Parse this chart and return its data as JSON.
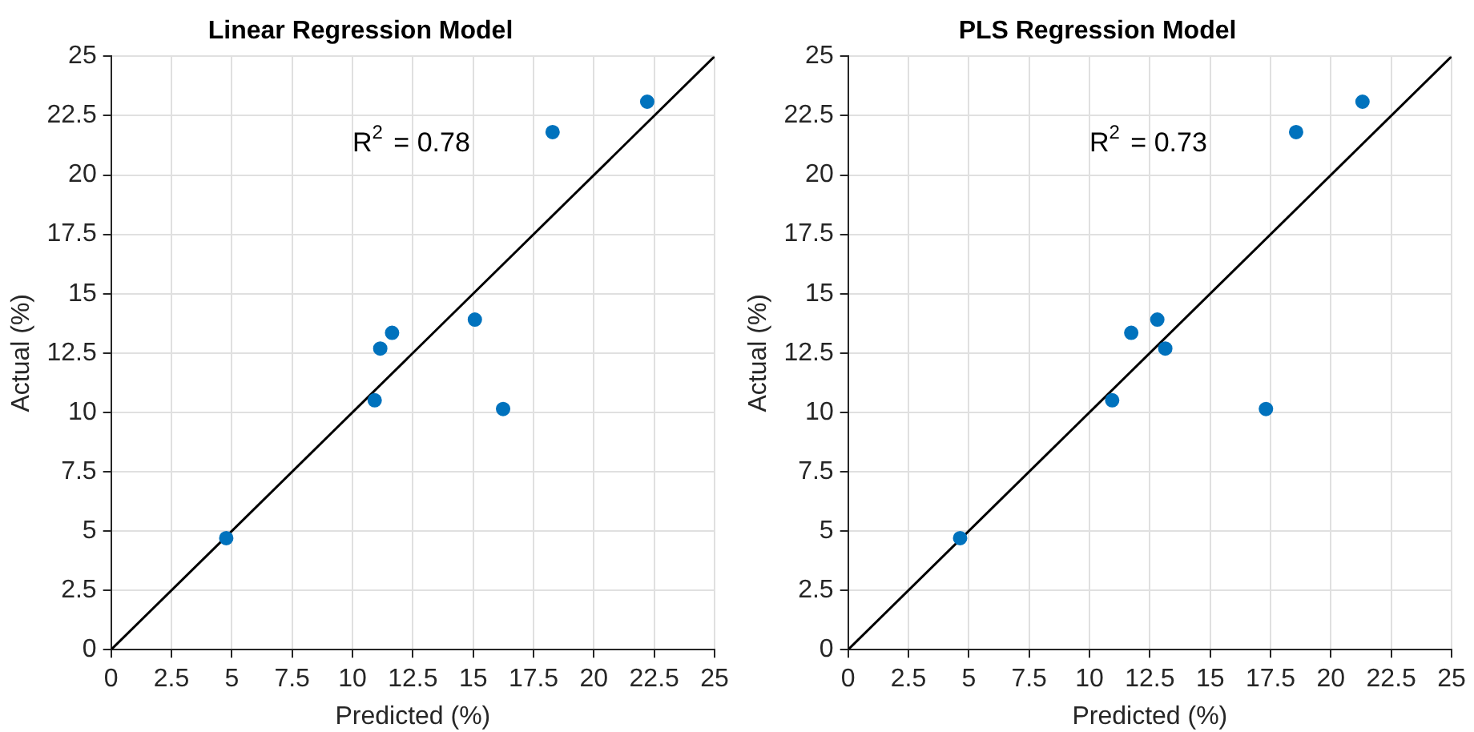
{
  "chart_data": [
    {
      "type": "scatter",
      "title": "Linear Regression Model",
      "xlabel": "Predicted (%)",
      "ylabel": "Actual (%)",
      "annotations": [
        "R$^{2}$ = 0.78"
      ],
      "grid": true,
      "legend": false,
      "xlim": [
        0,
        25
      ],
      "ylim": [
        0,
        25
      ],
      "xticks": [
        0,
        2.5,
        5,
        7.5,
        10,
        12.5,
        15,
        17.5,
        20,
        22.5,
        25
      ],
      "yticks": [
        0,
        2.5,
        5,
        7.5,
        10,
        12.5,
        15,
        17.5,
        20,
        22.5,
        25
      ],
      "series": [
        {
          "color": "#0072bd",
          "marker": "circle",
          "x": [
            4.77,
            10.92,
            11.15,
            11.64,
            15.07,
            16.24,
            18.29,
            22.21
          ],
          "values": [
            4.7,
            10.51,
            12.69,
            13.35,
            13.91,
            10.14,
            21.81,
            23.09
          ]
        },
        {
          "type": "line",
          "color": "#000000",
          "marker": "none",
          "x": [
            0,
            25
          ],
          "values": [
            0,
            25
          ]
        }
      ]
    },
    {
      "type": "scatter",
      "title": "PLS Regression Model",
      "xlabel": "Predicted (%)",
      "ylabel": "Actual (%)",
      "annotations": [
        "R$^{2}$ = 0.73"
      ],
      "grid": true,
      "legend": false,
      "xlim": [
        0,
        25
      ],
      "ylim": [
        0,
        25
      ],
      "xticks": [
        0,
        2.5,
        5,
        7.5,
        10,
        12.5,
        15,
        17.5,
        20,
        22.5,
        25
      ],
      "yticks": [
        0,
        2.5,
        5,
        7.5,
        10,
        12.5,
        15,
        17.5,
        20,
        22.5,
        25
      ],
      "series": [
        {
          "color": "#0072bd",
          "marker": "circle",
          "x": [
            4.64,
            10.94,
            11.73,
            12.81,
            13.14,
            17.31,
            18.56,
            21.31
          ],
          "values": [
            4.7,
            10.51,
            13.35,
            13.91,
            12.69,
            10.14,
            21.81,
            23.09
          ]
        },
        {
          "type": "line",
          "color": "#000000",
          "marker": "none",
          "x": [
            0,
            25
          ],
          "values": [
            0,
            25
          ]
        }
      ]
    }
  ]
}
